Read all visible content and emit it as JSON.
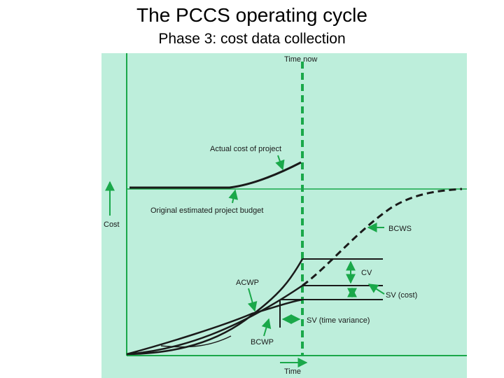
{
  "slide": {
    "title": "The PCCS operating cycle",
    "subtitle": "Phase 3: cost data collection"
  },
  "diagram": {
    "background_color": "#bdeedb",
    "accent_color": "#1aa84a",
    "labels": {
      "time_now": "Time now",
      "actual_cost": "Actual cost of project",
      "original_budget": "Original estimated project budget",
      "cost_axis": "Cost",
      "bcws": "BCWS",
      "cv": "CV",
      "acwp": "ACWP",
      "sv_cost": "SV (cost)",
      "sv_time": "SV (time variance)",
      "bcwp": "BCWP",
      "time_axis": "Time"
    }
  }
}
